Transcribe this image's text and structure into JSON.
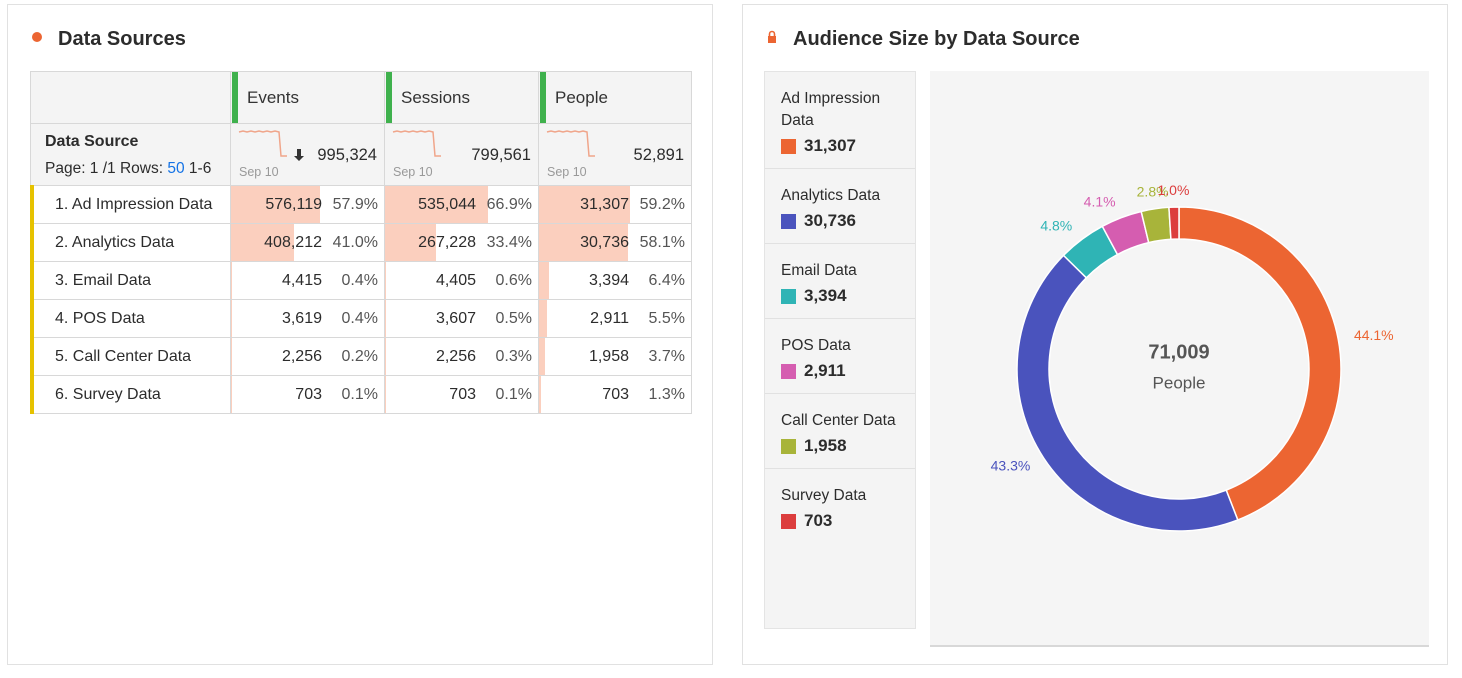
{
  "left_panel": {
    "title": "Data Sources",
    "table": {
      "dimension_header": "Data Source",
      "page_info": "Page: 1 /1 Rows:",
      "rows_per_page": "50",
      "range": "1-6",
      "columns": [
        {
          "name": "Events",
          "spark_label": "Sep 10",
          "total": "995,324"
        },
        {
          "name": "Sessions",
          "spark_label": "Sep 10",
          "total": "799,561"
        },
        {
          "name": "People",
          "spark_label": "Sep 10",
          "total": "52,891"
        }
      ],
      "rows": [
        {
          "label": "1. Ad Impression Data",
          "cells": [
            {
              "value": "576,119",
              "percent": {
                "value": 57.9,
                "label": "57.9%"
              }
            },
            {
              "value": "535,044",
              "percent": {
                "value": 66.9,
                "label": "66.9%"
              }
            },
            {
              "value": "31,307",
              "percent": {
                "value": 59.2,
                "label": "59.2%"
              }
            }
          ]
        },
        {
          "label": "2. Analytics Data",
          "cells": [
            {
              "value": "408,212",
              "percent": {
                "value": 41.0,
                "label": "41.0%"
              }
            },
            {
              "value": "267,228",
              "percent": {
                "value": 33.4,
                "label": "33.4%"
              }
            },
            {
              "value": "30,736",
              "percent": {
                "value": 58.1,
                "label": "58.1%"
              }
            }
          ]
        },
        {
          "label": "3. Email Data",
          "cells": [
            {
              "value": "4,415",
              "percent": {
                "value": 0.4,
                "label": "0.4%"
              }
            },
            {
              "value": "4,405",
              "percent": {
                "value": 0.6,
                "label": "0.6%"
              }
            },
            {
              "value": "3,394",
              "percent": {
                "value": 6.4,
                "label": "6.4%"
              }
            }
          ]
        },
        {
          "label": "4. POS Data",
          "cells": [
            {
              "value": "3,619",
              "percent": {
                "value": 0.4,
                "label": "0.4%"
              }
            },
            {
              "value": "3,607",
              "percent": {
                "value": 0.5,
                "label": "0.5%"
              }
            },
            {
              "value": "2,911",
              "percent": {
                "value": 5.5,
                "label": "5.5%"
              }
            }
          ]
        },
        {
          "label": "5. Call Center Data",
          "cells": [
            {
              "value": "2,256",
              "percent": {
                "value": 0.2,
                "label": "0.2%"
              }
            },
            {
              "value": "2,256",
              "percent": {
                "value": 0.3,
                "label": "0.3%"
              }
            },
            {
              "value": "1,958",
              "percent": {
                "value": 3.7,
                "label": "3.7%"
              }
            }
          ]
        },
        {
          "label": "6. Survey Data",
          "cells": [
            {
              "value": "703",
              "percent": {
                "value": 0.1,
                "label": "0.1%"
              }
            },
            {
              "value": "703",
              "percent": {
                "value": 0.1,
                "label": "0.1%"
              }
            },
            {
              "value": "703",
              "percent": {
                "value": 1.3,
                "label": "1.3%"
              }
            }
          ]
        }
      ]
    }
  },
  "right_panel": {
    "title": "Audience Size by Data Source"
  },
  "chart_data": {
    "type": "pie",
    "donut": true,
    "categories": [
      "Ad Impression Data",
      "Analytics Data",
      "Email Data",
      "POS Data",
      "Call Center Data",
      "Survey Data"
    ],
    "values": [
      31307,
      30736,
      3394,
      2911,
      1958,
      703
    ],
    "value_labels": [
      "31,307",
      "30,736",
      "3,394",
      "2,911",
      "1,958",
      "703"
    ],
    "slice_labels": [
      "44.1%",
      "43.3%",
      "4.8%",
      "4.1%",
      "2.8%",
      "1.0%"
    ],
    "colors": [
      "#ec6532",
      "#4a53bd",
      "#2fb4b5",
      "#d55db0",
      "#a8b43a",
      "#dc3d3d"
    ],
    "center_value": "71,009",
    "center_label": "People"
  }
}
